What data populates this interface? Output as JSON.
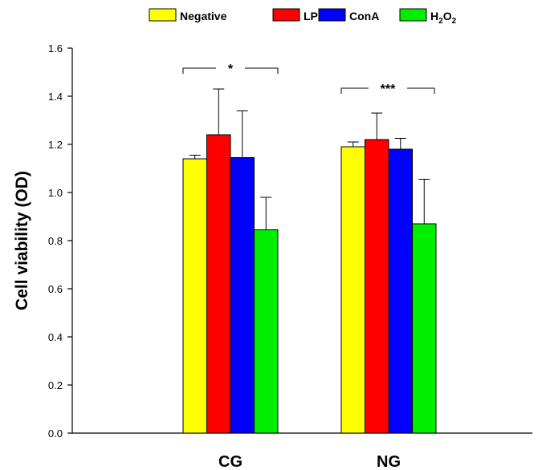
{
  "chart_data": {
    "type": "bar",
    "title": "",
    "xlabel": "",
    "ylabel": "Cell viability (OD)",
    "categories": [
      "CG",
      "NG"
    ],
    "ylim": [
      0,
      1.6
    ],
    "yticks": [
      "0.0",
      "0.2",
      "0.4",
      "0.6",
      "0.8",
      "1.0",
      "1.2",
      "1.4",
      "1.6"
    ],
    "grid": false,
    "legend_position": "top-center",
    "series": [
      {
        "name": "Negative",
        "color": "#ffff00",
        "values": [
          1.14,
          1.19
        ],
        "errors": [
          0.015,
          0.02
        ]
      },
      {
        "name": "LPS",
        "color": "#ff0000",
        "values": [
          1.24,
          1.22
        ],
        "errors": [
          0.19,
          0.11
        ]
      },
      {
        "name": "ConA",
        "color": "#0000ff",
        "values": [
          1.145,
          1.18
        ],
        "errors": [
          0.195,
          0.045
        ]
      },
      {
        "name": "H2O2",
        "legend_label": {
          "base": "H",
          "sub1": "2",
          "mid": "O",
          "sub2": "2"
        },
        "color": "#00ee00",
        "values": [
          0.845,
          0.87
        ],
        "errors": [
          0.135,
          0.185
        ]
      }
    ],
    "annotations": [
      {
        "category": "CG",
        "text": "*"
      },
      {
        "category": "NG",
        "text": "***"
      }
    ]
  }
}
